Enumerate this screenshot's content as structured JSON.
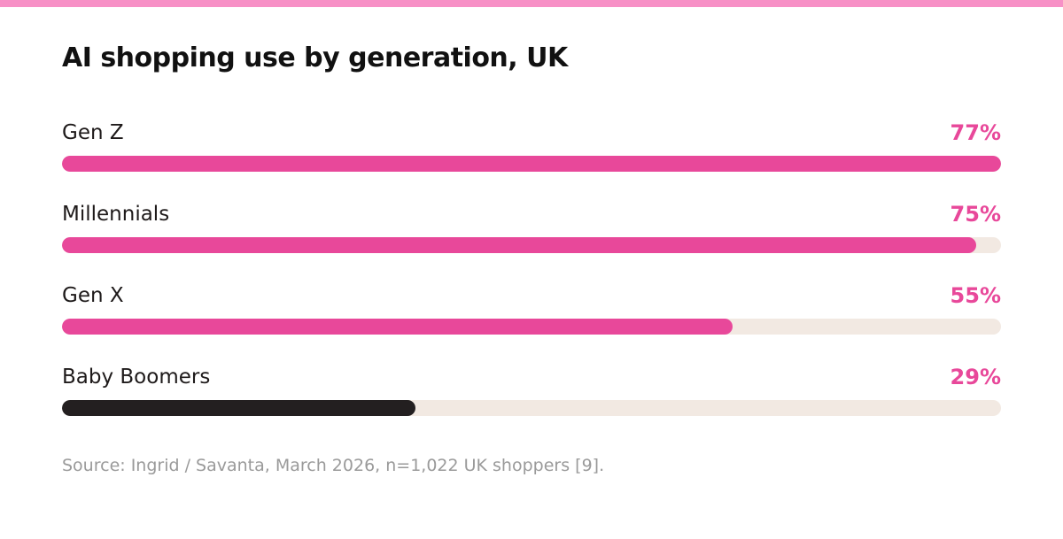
{
  "title": "AI shopping use by generation, UK",
  "source": "Source: Ingrid / Savanta, March 2026, n=1,022 UK shoppers [9].",
  "colors": {
    "accent_bar": "#f790c6",
    "pink": "#e8489a",
    "dark": "#231f20",
    "track": "#f2e9e2"
  },
  "chart_data": {
    "type": "bar",
    "orientation": "horizontal",
    "categories": [
      "Gen Z",
      "Millennials",
      "Gen X",
      "Baby Boomers"
    ],
    "values": [
      77,
      75,
      55,
      29
    ],
    "value_labels": [
      "77%",
      "75%",
      "55%",
      "29%"
    ],
    "bar_colors": [
      "#e8489a",
      "#e8489a",
      "#e8489a",
      "#231f20"
    ],
    "xlim": [
      0,
      77
    ],
    "title": "AI shopping use by generation, UK",
    "xlabel": "",
    "ylabel": "",
    "grid": false,
    "legend": false
  }
}
